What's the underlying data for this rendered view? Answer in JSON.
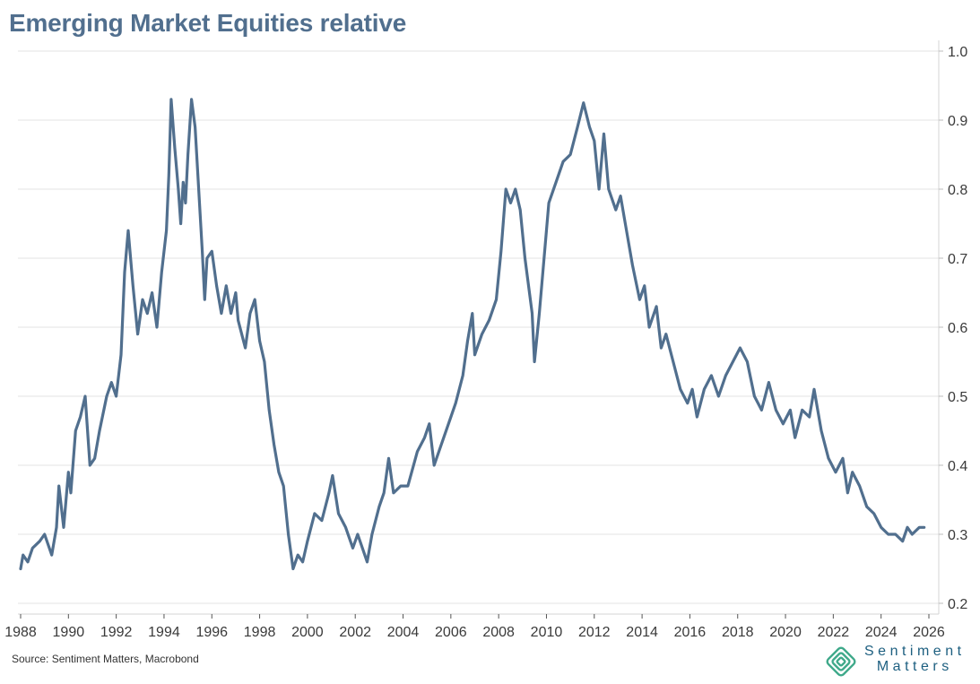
{
  "chart_data": {
    "type": "line",
    "title": "Emerging Market Equities relative",
    "xlabel": "",
    "ylabel": "",
    "xlim": [
      1988,
      2026
    ],
    "ylim": [
      0.2,
      1.0
    ],
    "x_ticks": [
      "1988",
      "1990",
      "1992",
      "1994",
      "1996",
      "1998",
      "2000",
      "2002",
      "2004",
      "2006",
      "2008",
      "2010",
      "2012",
      "2014",
      "2016",
      "2018",
      "2020",
      "2022",
      "2024",
      "2026"
    ],
    "y_ticks": [
      "0.2",
      "0.3",
      "0.4",
      "0.5",
      "0.6",
      "0.7",
      "0.8",
      "0.9",
      "1.0"
    ],
    "y_axis_side": "right",
    "grid": true,
    "legend": "none",
    "line_color": "#516f8e",
    "series": [
      {
        "name": "Emerging Market Equities relative",
        "x": [
          1988.0,
          1988.1,
          1988.3,
          1988.5,
          1988.8,
          1989.0,
          1989.3,
          1989.5,
          1989.6,
          1989.8,
          1990.0,
          1990.1,
          1990.3,
          1990.5,
          1990.7,
          1990.9,
          1991.1,
          1991.3,
          1991.6,
          1991.8,
          1992.0,
          1992.2,
          1992.35,
          1992.5,
          1992.7,
          1992.9,
          1993.1,
          1993.3,
          1993.5,
          1993.7,
          1993.9,
          1994.1,
          1994.2,
          1994.3,
          1994.45,
          1994.6,
          1994.7,
          1994.8,
          1994.9,
          1995.0,
          1995.15,
          1995.3,
          1995.45,
          1995.6,
          1995.7,
          1995.8,
          1996.0,
          1996.2,
          1996.4,
          1996.6,
          1996.8,
          1997.0,
          1997.1,
          1997.4,
          1997.6,
          1997.8,
          1998.0,
          1998.2,
          1998.4,
          1998.6,
          1998.8,
          1999.0,
          1999.2,
          1999.4,
          1999.6,
          1999.8,
          2000.0,
          2000.3,
          2000.6,
          2000.9,
          2001.05,
          2001.3,
          2001.6,
          2001.9,
          2002.1,
          2002.3,
          2002.5,
          2002.7,
          2003.0,
          2003.2,
          2003.4,
          2003.6,
          2003.9,
          2004.2,
          2004.6,
          2004.9,
          2005.1,
          2005.3,
          2005.6,
          2005.9,
          2006.2,
          2006.5,
          2006.7,
          2006.9,
          2007.0,
          2007.3,
          2007.6,
          2007.9,
          2008.1,
          2008.3,
          2008.5,
          2008.7,
          2008.9,
          2009.1,
          2009.4,
          2009.5,
          2009.7,
          2009.9,
          2010.1,
          2010.4,
          2010.7,
          2011.0,
          2011.3,
          2011.55,
          2011.8,
          2012.0,
          2012.2,
          2012.4,
          2012.6,
          2012.9,
          2013.1,
          2013.3,
          2013.6,
          2013.9,
          2014.1,
          2014.3,
          2014.6,
          2014.8,
          2015.0,
          2015.3,
          2015.6,
          2015.9,
          2016.1,
          2016.3,
          2016.6,
          2016.9,
          2017.2,
          2017.5,
          2017.8,
          2018.1,
          2018.4,
          2018.7,
          2019.0,
          2019.3,
          2019.6,
          2019.9,
          2020.2,
          2020.4,
          2020.7,
          2021.0,
          2021.2,
          2021.5,
          2021.8,
          2022.1,
          2022.4,
          2022.6,
          2022.8,
          2023.1,
          2023.4,
          2023.7,
          2024.0,
          2024.3,
          2024.6,
          2024.9,
          2025.1,
          2025.3,
          2025.6,
          2025.8
        ],
        "y": [
          0.25,
          0.27,
          0.26,
          0.28,
          0.29,
          0.3,
          0.27,
          0.31,
          0.37,
          0.31,
          0.39,
          0.36,
          0.45,
          0.47,
          0.5,
          0.4,
          0.41,
          0.45,
          0.5,
          0.52,
          0.5,
          0.56,
          0.68,
          0.74,
          0.66,
          0.59,
          0.64,
          0.62,
          0.65,
          0.6,
          0.68,
          0.74,
          0.82,
          0.93,
          0.86,
          0.8,
          0.75,
          0.81,
          0.78,
          0.85,
          0.93,
          0.89,
          0.8,
          0.71,
          0.64,
          0.7,
          0.71,
          0.66,
          0.62,
          0.66,
          0.62,
          0.65,
          0.61,
          0.57,
          0.62,
          0.64,
          0.58,
          0.55,
          0.48,
          0.43,
          0.39,
          0.37,
          0.3,
          0.25,
          0.27,
          0.26,
          0.29,
          0.33,
          0.32,
          0.36,
          0.385,
          0.33,
          0.31,
          0.28,
          0.3,
          0.28,
          0.26,
          0.3,
          0.34,
          0.36,
          0.41,
          0.36,
          0.37,
          0.37,
          0.42,
          0.44,
          0.46,
          0.4,
          0.43,
          0.46,
          0.49,
          0.53,
          0.58,
          0.62,
          0.56,
          0.59,
          0.61,
          0.64,
          0.71,
          0.8,
          0.78,
          0.8,
          0.77,
          0.7,
          0.62,
          0.55,
          0.62,
          0.7,
          0.78,
          0.81,
          0.84,
          0.85,
          0.89,
          0.925,
          0.89,
          0.87,
          0.8,
          0.88,
          0.8,
          0.77,
          0.79,
          0.75,
          0.69,
          0.64,
          0.66,
          0.6,
          0.63,
          0.57,
          0.59,
          0.55,
          0.51,
          0.49,
          0.51,
          0.47,
          0.51,
          0.53,
          0.5,
          0.53,
          0.55,
          0.57,
          0.55,
          0.5,
          0.48,
          0.52,
          0.48,
          0.46,
          0.48,
          0.44,
          0.48,
          0.47,
          0.51,
          0.45,
          0.41,
          0.39,
          0.41,
          0.36,
          0.39,
          0.37,
          0.34,
          0.33,
          0.31,
          0.3,
          0.3,
          0.29,
          0.31,
          0.3,
          0.31,
          0.31
        ]
      }
    ]
  },
  "footer": {
    "source": "Source: Sentiment Matters, Macrobond",
    "logo_line1": "Sentiment",
    "logo_line2": "Matters",
    "logo_icon": "nested-diamond-icon"
  }
}
